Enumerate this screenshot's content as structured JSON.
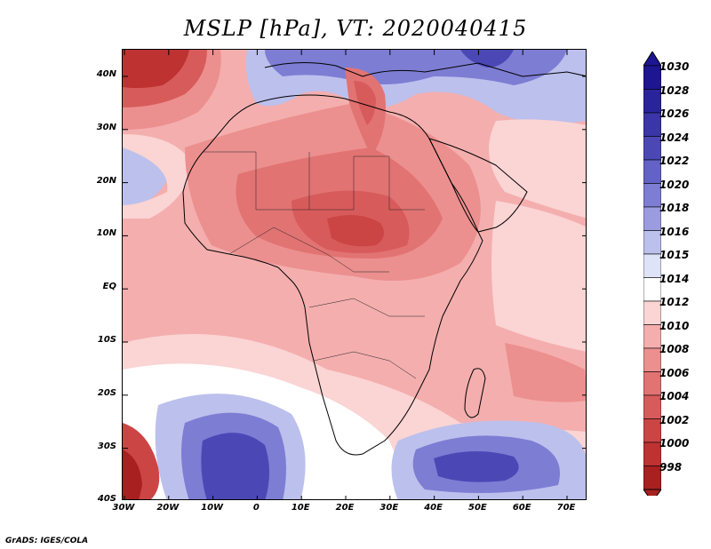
{
  "title": "MSLP [hPa], VT: 2020040415",
  "footer": "GrADS: IGES/COLA",
  "lat_labels": [
    "40N",
    "30N",
    "20N",
    "10N",
    "EQ",
    "10S",
    "20S",
    "30S",
    "40S"
  ],
  "lon_labels": [
    "30W",
    "20W",
    "10W",
    "0",
    "10E",
    "20E",
    "30E",
    "40E",
    "50E",
    "60E",
    "70E"
  ],
  "colorbar": {
    "levels": [
      "1030",
      "1028",
      "1026",
      "1024",
      "1022",
      "1020",
      "1018",
      "1016",
      "1015",
      "1014",
      "1012",
      "1010",
      "1008",
      "1006",
      "1004",
      "1002",
      "1000",
      "998"
    ],
    "colors": [
      "#1d1592",
      "#2a249c",
      "#3a35a8",
      "#4b48b6",
      "#6362c6",
      "#7d7dd4",
      "#9b9ce0",
      "#bcc0ec",
      "#dfe3f8",
      "#ffffff",
      "#fbd4d4",
      "#f4aeae",
      "#ec8f8f",
      "#e27373",
      "#d85b5b",
      "#cc4545",
      "#be3232",
      "#a82020"
    ]
  },
  "map": {
    "lat_range": [
      -40,
      45
    ],
    "lon_range": [
      -30,
      75
    ],
    "background_color": "#f4aeae",
    "pressure_regions": [
      {
        "label": "1016",
        "color": "#bcc0ec"
      },
      {
        "label": "1022",
        "color": "#6362c6"
      },
      {
        "label": "1010",
        "color": "#f4aeae"
      },
      {
        "label": "1006",
        "color": "#e27373"
      },
      {
        "label": "1004",
        "color": "#d85b5b"
      },
      {
        "label": "1000",
        "color": "#be3232"
      }
    ]
  }
}
